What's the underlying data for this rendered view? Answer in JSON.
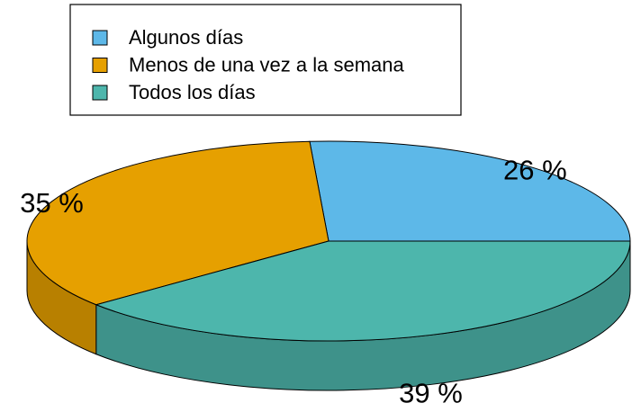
{
  "chart_data": {
    "type": "pie3d",
    "categories": [
      "Algunos días",
      "Menos de una vez a la semana",
      "Todos los días"
    ],
    "values": [
      26,
      35,
      39
    ],
    "value_labels": [
      "26 %",
      "35 %",
      "39 %"
    ],
    "colors": [
      "#5db8e8",
      "#e6a000",
      "#4db6ac"
    ]
  }
}
